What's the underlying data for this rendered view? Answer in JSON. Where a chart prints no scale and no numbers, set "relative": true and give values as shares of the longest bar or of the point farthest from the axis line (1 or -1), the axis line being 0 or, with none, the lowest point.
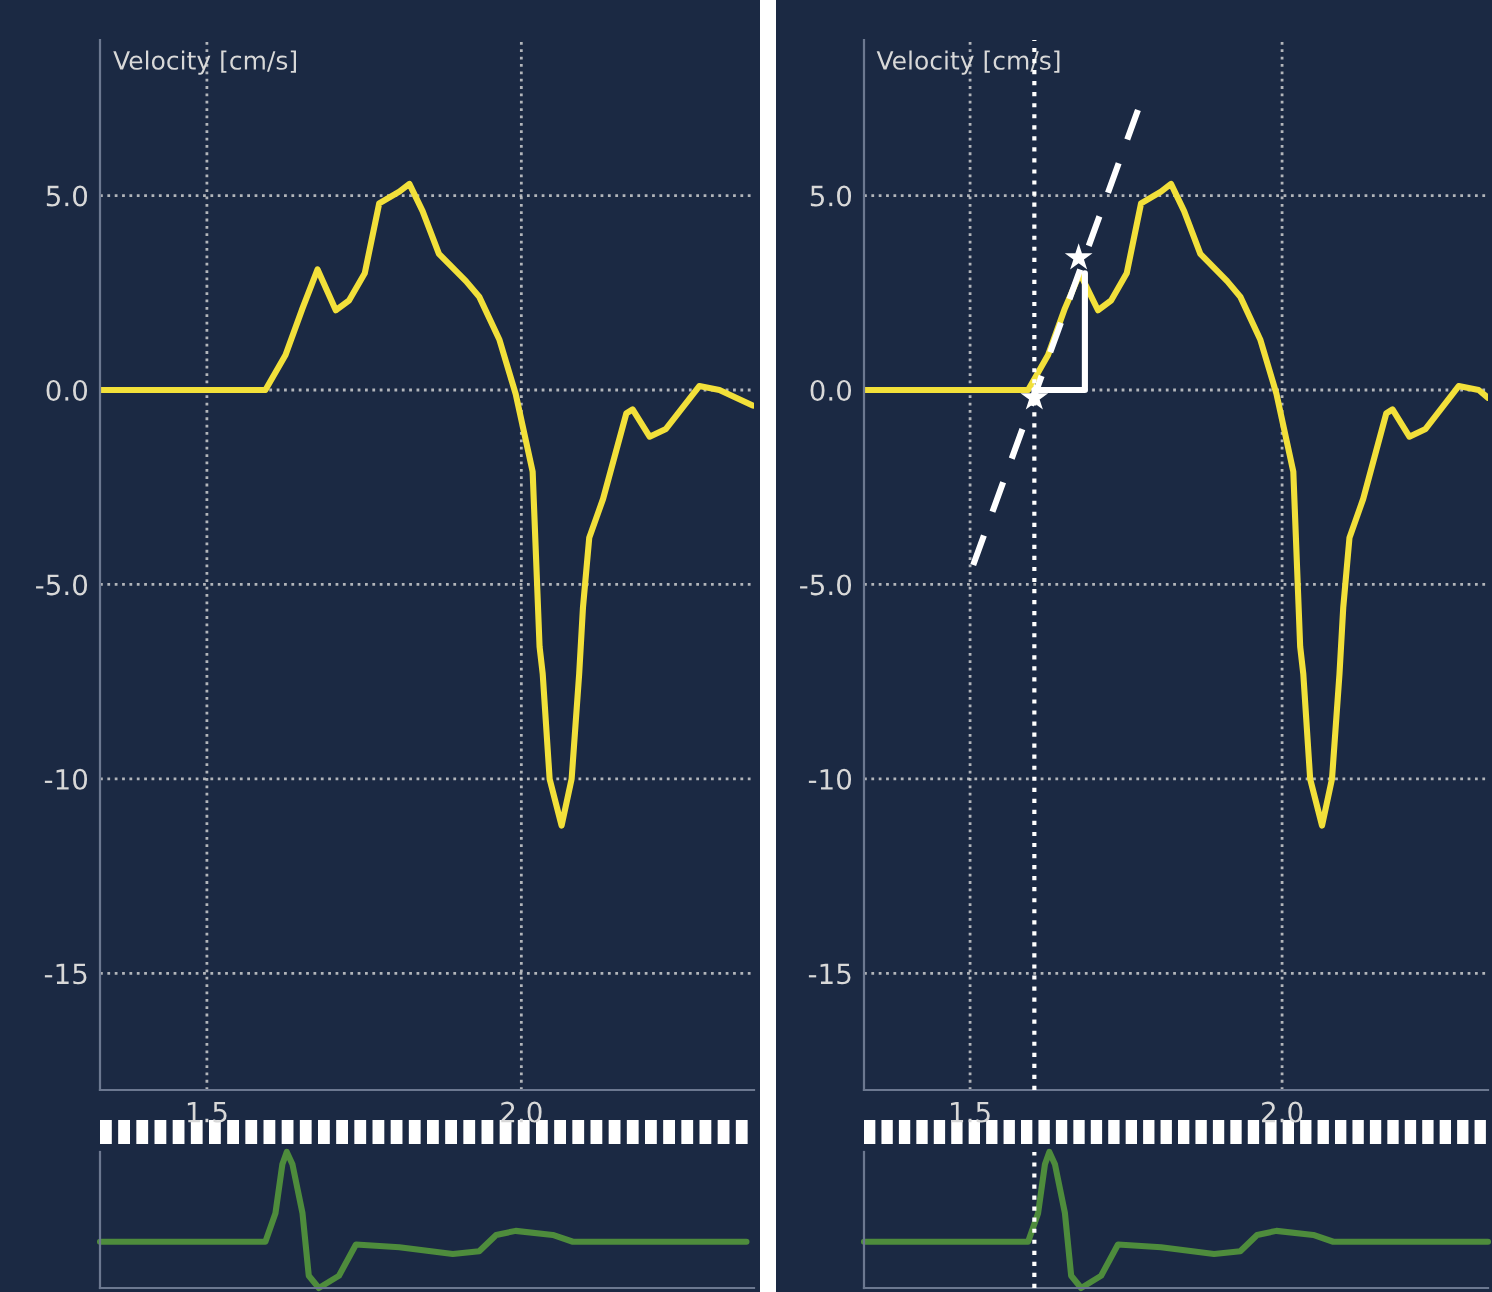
{
  "chart_data": [
    {
      "type": "line",
      "ylabel": "Velocity [cm/s]",
      "xlim": [
        1.33,
        2.37
      ],
      "ylim": [
        -18,
        9
      ],
      "xticks": [
        1.5,
        {
          "value": 2,
          "label": "2.0"
        }
      ],
      "yticks": [
        {
          "value": 5,
          "label": "5.0"
        },
        {
          "value": 0,
          "label": "0.0"
        },
        {
          "value": -5,
          "label": "-5.0"
        },
        {
          "value": -10,
          "label": "-10"
        },
        {
          "value": -15,
          "label": "-15"
        }
      ],
      "grid": true,
      "series": [
        {
          "color": "#f2e03a",
          "x": [
            1.33,
            1.593,
            1.625,
            1.652,
            1.676,
            1.705,
            1.726,
            1.751,
            1.774,
            1.806,
            1.822,
            1.843,
            1.869,
            1.912,
            1.933,
            1.965,
            1.991,
            2.018,
            2.029,
            2.034,
            2.045,
            2.064,
            2.08,
            2.092,
            2.098,
            2.108,
            2.13,
            2.167,
            2.177,
            2.204,
            2.23,
            2.283,
            2.315,
            2.368
          ],
          "values": [
            0,
            0,
            0.9,
            2.1,
            3.1,
            2.05,
            2.3,
            3.0,
            4.8,
            5.1,
            5.3,
            4.6,
            3.5,
            2.8,
            2.4,
            1.3,
            -0.1,
            -2.1,
            -6.6,
            -7.3,
            -10,
            -11.2,
            -10,
            -7.3,
            -5.6,
            -3.8,
            -2.8,
            -0.6,
            -0.5,
            -1.2,
            -1.0,
            0.1,
            0,
            -0.4
          ]
        }
      ]
    },
    {
      "type": "line",
      "ylabel": "Velocity [cm/s]",
      "xlim": [
        1.33,
        2.33
      ],
      "ylim": [
        -18,
        9
      ],
      "xticks": [
        1.5,
        {
          "value": 2,
          "label": "2.0"
        }
      ],
      "yticks": [
        {
          "value": 5,
          "label": "5.0"
        },
        {
          "value": 0,
          "label": "0.0"
        },
        {
          "value": -5,
          "label": "-5.0"
        },
        {
          "value": -10,
          "label": "-10"
        },
        {
          "value": -15,
          "label": "-15"
        }
      ],
      "grid": true,
      "ref_lines": [
        {
          "axis": "x",
          "value": 1.603,
          "color": "#ffffff",
          "line_style": "dotted"
        }
      ],
      "series": [
        {
          "color": "#f2e03a",
          "x": [
            1.33,
            1.593,
            1.625,
            1.652,
            1.676,
            1.705,
            1.726,
            1.751,
            1.774,
            1.806,
            1.822,
            1.843,
            1.869,
            1.912,
            1.933,
            1.965,
            1.991,
            2.018,
            2.029,
            2.034,
            2.045,
            2.064,
            2.08,
            2.092,
            2.098,
            2.108,
            2.13,
            2.167,
            2.177,
            2.204,
            2.23,
            2.283,
            2.315,
            2.33
          ],
          "values": [
            0,
            0,
            0.9,
            2.1,
            3.0,
            2.05,
            2.3,
            3.0,
            4.8,
            5.1,
            5.3,
            4.6,
            3.5,
            2.8,
            2.4,
            1.3,
            -0.1,
            -2.1,
            -6.6,
            -7.3,
            -10,
            -11.2,
            -10,
            -7.3,
            -5.6,
            -3.8,
            -2.8,
            -0.6,
            -0.5,
            -1.2,
            -1.0,
            0.1,
            0,
            -0.2
          ]
        },
        {
          "type": "line",
          "color": "#ffffff",
          "line_style": "dashed",
          "x": [
            1.505,
            1.769
          ],
          "values": [
            -4.5,
            7.2
          ]
        },
        {
          "type": "line",
          "color": "#ffffff",
          "line_style": "solid",
          "x": [
            1.603,
            1.684,
            1.684
          ],
          "values": [
            0,
            0,
            3.0
          ]
        },
        {
          "type": "scatter",
          "color": "#ffffff",
          "marker": "star",
          "x": [
            1.603,
            1.674
          ],
          "values": [
            -0.2,
            3.4
          ]
        }
      ]
    },
    {
      "type": "line",
      "relative": true,
      "xlim": [
        1.33,
        2.37
      ],
      "tick_labels": false,
      "series": [
        {
          "color": "#4e8c3c",
          "x": [
            1.33,
            1.593,
            1.609,
            1.62,
            1.627,
            1.636,
            1.652,
            1.662,
            1.678,
            1.71,
            1.737,
            1.806,
            1.891,
            1.933,
            1.96,
            1.991,
            2.05,
            2.082,
            2.358
          ],
          "values": [
            0.34,
            0.34,
            0.55,
            0.91,
            1,
            0.91,
            0.55,
            0.09,
            0,
            0.09,
            0.32,
            0.3,
            0.25,
            0.27,
            0.39,
            0.42,
            0.39,
            0.34,
            0.34
          ]
        }
      ]
    },
    {
      "type": "line",
      "relative": true,
      "xlim": [
        1.33,
        2.33
      ],
      "tick_labels": false,
      "ref_lines": [
        {
          "axis": "x",
          "value": 1.603,
          "color": "#ffffff",
          "line_style": "dotted"
        }
      ],
      "series": [
        {
          "color": "#4e8c3c",
          "x": [
            1.33,
            1.593,
            1.609,
            1.62,
            1.627,
            1.636,
            1.652,
            1.662,
            1.678,
            1.71,
            1.737,
            1.806,
            1.891,
            1.933,
            1.96,
            1.991,
            2.05,
            2.082,
            2.33
          ],
          "values": [
            0.34,
            0.34,
            0.55,
            0.91,
            1,
            0.91,
            0.55,
            0.09,
            0,
            0.09,
            0.32,
            0.3,
            0.25,
            0.27,
            0.39,
            0.42,
            0.39,
            0.34,
            0.34
          ]
        }
      ]
    }
  ]
}
